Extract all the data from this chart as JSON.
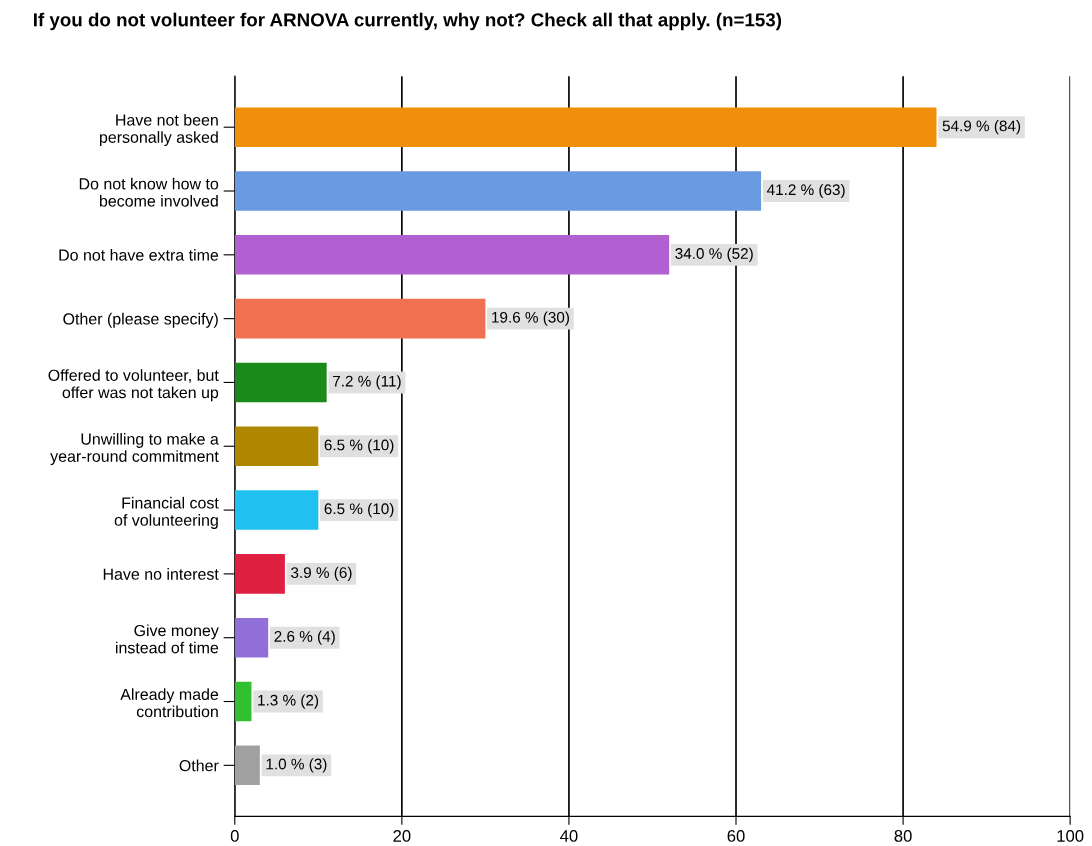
{
  "chart_data": {
    "type": "bar",
    "orientation": "horizontal",
    "title": "If you do not volunteer for ARNOVA currently, why not? Check all that apply. (n=153)",
    "categories": [
      "Have not been\npersonally asked",
      "Do not know how to\nbecome involved",
      "Do not have extra time",
      "Other (please specify)",
      "Offered to volunteer, but\noffer was not taken up",
      "Unwilling to make a\nyear-round commitment",
      "Financial cost\nof volunteering",
      "Have no interest",
      "Give money\ninstead of time",
      "Already made\ncontribution",
      "Other"
    ],
    "values": [
      84,
      63,
      52,
      30,
      11,
      10,
      10,
      6,
      4,
      2,
      3
    ],
    "colors": [
      "#f0900a",
      "#6a9ae0",
      "#b060d0",
      "#f07050",
      "#1a8a1a",
      "#b08800",
      "#20c0f0",
      "#e02040",
      "#9070d8",
      "#30c030",
      "#a0a0a0"
    ],
    "value_labels": [
      "54.9 % (84)",
      "41.2 % (63)",
      "34.0 % (52)",
      "19.6 % (30)",
      "7.2 % (11)",
      "6.5 % (10)",
      "6.5 % (10)",
      "3.9 % (6)",
      "2.6 % (4)",
      "1.3 % (2)",
      "1.0 % (3)"
    ],
    "xlim": [
      0,
      100
    ],
    "xticks": [
      0,
      20,
      40,
      60,
      80,
      100
    ],
    "grid": "x",
    "legend": false
  }
}
